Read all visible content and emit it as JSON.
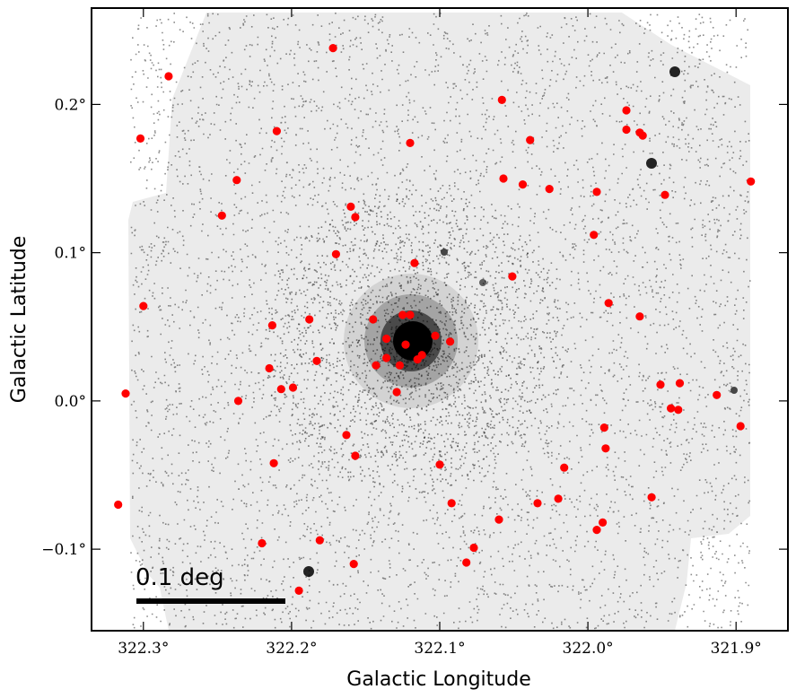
{
  "chart_data": {
    "type": "scatter",
    "title": "",
    "xlabel": "Galactic Longitude",
    "ylabel": "Galactic Latitude",
    "x_direction": "decreasing",
    "xlim": [
      322.335,
      321.865
    ],
    "ylim": [
      -0.155,
      0.265
    ],
    "xticks": [
      322.3,
      322.2,
      322.1,
      322.0,
      321.9
    ],
    "xtick_labels": [
      "322.3°",
      "322.2°",
      "322.1°",
      "322.0°",
      "321.9°"
    ],
    "yticks": [
      0.2,
      0.1,
      0.0,
      -0.1
    ],
    "ytick_labels": [
      "0.2°",
      "0.1°",
      "0.0°",
      "−0.1°"
    ],
    "grid": false,
    "background_image": "x-ray exposure map (grey field with black photon counts)",
    "colors": {
      "points": "#ff0000",
      "field": "#ebebeb",
      "counts": "#000000"
    },
    "scale_bar": {
      "label": "0.1 deg",
      "length_deg": 0.1
    },
    "series": [
      {
        "marker": "circle",
        "points": [
          [
            322.172,
            0.238
          ],
          [
            322.283,
            0.219
          ],
          [
            322.302,
            0.177
          ],
          [
            322.21,
            0.182
          ],
          [
            322.12,
            0.174
          ],
          [
            322.058,
            0.203
          ],
          [
            322.237,
            0.149
          ],
          [
            322.247,
            0.125
          ],
          [
            322.16,
            0.131
          ],
          [
            322.157,
            0.124
          ],
          [
            322.057,
            0.15
          ],
          [
            322.044,
            0.146
          ],
          [
            322.026,
            0.143
          ],
          [
            322.039,
            0.176
          ],
          [
            321.974,
            0.196
          ],
          [
            321.974,
            0.183
          ],
          [
            321.965,
            0.181
          ],
          [
            321.963,
            0.179
          ],
          [
            321.994,
            0.141
          ],
          [
            321.948,
            0.139
          ],
          [
            321.89,
            0.148
          ],
          [
            321.996,
            0.112
          ],
          [
            322.3,
            0.064
          ],
          [
            322.17,
            0.099
          ],
          [
            322.117,
            0.093
          ],
          [
            322.051,
            0.084
          ],
          [
            321.986,
            0.066
          ],
          [
            321.965,
            0.057
          ],
          [
            322.213,
            0.051
          ],
          [
            322.188,
            0.055
          ],
          [
            322.145,
            0.055
          ],
          [
            322.125,
            0.058
          ],
          [
            322.12,
            0.058
          ],
          [
            322.136,
            0.042
          ],
          [
            322.123,
            0.038
          ],
          [
            322.103,
            0.044
          ],
          [
            322.093,
            0.04
          ],
          [
            322.136,
            0.029
          ],
          [
            322.115,
            0.028
          ],
          [
            322.112,
            0.031
          ],
          [
            322.143,
            0.024
          ],
          [
            322.127,
            0.024
          ],
          [
            322.183,
            0.027
          ],
          [
            322.215,
            0.022
          ],
          [
            322.207,
            0.008
          ],
          [
            322.199,
            0.009
          ],
          [
            322.129,
            0.006
          ],
          [
            322.312,
            0.005
          ],
          [
            322.236,
            0.0
          ],
          [
            321.951,
            0.011
          ],
          [
            321.938,
            0.012
          ],
          [
            321.944,
            -0.005
          ],
          [
            321.939,
            -0.006
          ],
          [
            321.913,
            0.004
          ],
          [
            321.897,
            -0.017
          ],
          [
            322.163,
            -0.023
          ],
          [
            322.157,
            -0.037
          ],
          [
            322.212,
            -0.042
          ],
          [
            322.1,
            -0.043
          ],
          [
            321.989,
            -0.018
          ],
          [
            321.988,
            -0.032
          ],
          [
            322.016,
            -0.045
          ],
          [
            322.092,
            -0.069
          ],
          [
            322.034,
            -0.069
          ],
          [
            322.02,
            -0.066
          ],
          [
            321.957,
            -0.065
          ],
          [
            322.317,
            -0.07
          ],
          [
            322.06,
            -0.08
          ],
          [
            321.99,
            -0.082
          ],
          [
            321.994,
            -0.087
          ],
          [
            322.22,
            -0.096
          ],
          [
            322.181,
            -0.094
          ],
          [
            322.077,
            -0.099
          ],
          [
            322.158,
            -0.11
          ],
          [
            322.082,
            -0.109
          ],
          [
            322.195,
            -0.128
          ]
        ]
      }
    ]
  }
}
